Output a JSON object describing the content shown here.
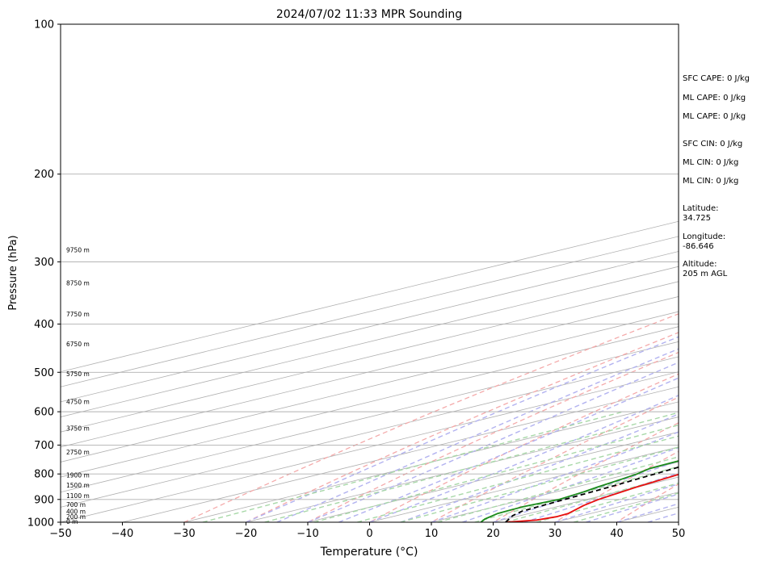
{
  "chart_data": {
    "type": "line",
    "title": "2024/07/02 11:33 MPR Sounding",
    "xlabel": "Temperature (°C)",
    "ylabel": "Pressure (hPa)",
    "xlim": [
      -50,
      50
    ],
    "ylim": [
      1000,
      100
    ],
    "y_scale": "log",
    "x_ticks": [
      -50,
      -40,
      -30,
      -20,
      -10,
      0,
      10,
      20,
      30,
      40,
      50
    ],
    "y_ticks": [
      1000,
      900,
      800,
      700,
      600,
      500,
      400,
      300,
      200,
      100
    ],
    "grid": true,
    "series": [
      {
        "key": "temperature",
        "color": "#e8100f",
        "dash": "solid",
        "points": [
          [
            1000,
            22.0
          ],
          [
            990,
            25.6
          ],
          [
            975,
            26.6
          ],
          [
            960,
            26.3
          ],
          [
            925,
            23.5
          ],
          [
            900,
            21.9
          ],
          [
            850,
            19.8
          ],
          [
            800,
            18.2
          ],
          [
            750,
            16.6
          ],
          [
            700,
            14.7
          ],
          [
            650,
            13.2
          ],
          [
            600,
            11.7
          ],
          [
            550,
            9.8
          ],
          [
            500,
            7.5
          ],
          [
            450,
            4.5
          ],
          [
            400,
            1.1
          ],
          [
            350,
            -3.3
          ],
          [
            300,
            -8.3
          ],
          [
            282,
            -10.4
          ]
        ]
      },
      {
        "key": "dewpoint",
        "color": "#1a8a1a",
        "dash": "solid",
        "points": [
          [
            1000,
            18.0
          ],
          [
            985,
            16.5
          ],
          [
            960,
            14.9
          ],
          [
            930,
            14.5
          ],
          [
            900,
            15.5
          ],
          [
            870,
            14.5
          ],
          [
            850,
            13.5
          ],
          [
            820,
            12.2
          ],
          [
            800,
            11.2
          ],
          [
            780,
            9.6
          ],
          [
            750,
            9.2
          ],
          [
            700,
            7.2
          ],
          [
            650,
            5.5
          ],
          [
            610,
            4.0
          ],
          [
            600,
            3.5
          ],
          [
            580,
            3.7
          ],
          [
            560,
            2.3
          ],
          [
            530,
            -0.6
          ],
          [
            500,
            -3.2
          ],
          [
            450,
            -8.0
          ],
          [
            400,
            -14.0
          ],
          [
            350,
            -20.5
          ],
          [
            325,
            -24.2
          ],
          [
            300,
            -27.6
          ],
          [
            290,
            -29.0
          ],
          [
            282,
            -27.5
          ]
        ]
      },
      {
        "key": "parcel",
        "color": "#000000",
        "dash": "6,4",
        "points": [
          [
            1000,
            22.0
          ],
          [
            970,
            18.8
          ],
          [
            950,
            17.3
          ],
          [
            900,
            16.4
          ],
          [
            850,
            15.4
          ],
          [
            800,
            14.1
          ],
          [
            750,
            12.7
          ],
          [
            700,
            11.0
          ],
          [
            650,
            9.1
          ],
          [
            600,
            6.8
          ],
          [
            550,
            4.0
          ],
          [
            500,
            0.8
          ],
          [
            450,
            -3.0
          ],
          [
            400,
            -7.5
          ],
          [
            350,
            -12.6
          ],
          [
            300,
            -17.8
          ],
          [
            282,
            -19.9
          ]
        ]
      }
    ],
    "height_labels": [
      {
        "p": 1000,
        "label": "0 m"
      },
      {
        "p": 977,
        "label": "200 m"
      },
      {
        "p": 955,
        "label": "400 m"
      },
      {
        "p": 925,
        "label": "700 m"
      },
      {
        "p": 887,
        "label": "1100 m"
      },
      {
        "p": 845,
        "label": "1500 m"
      },
      {
        "p": 807,
        "label": "1900 m"
      },
      {
        "p": 725,
        "label": "2750 m"
      },
      {
        "p": 650,
        "label": "3750 m"
      },
      {
        "p": 575,
        "label": "4750 m"
      },
      {
        "p": 505,
        "label": "5750 m"
      },
      {
        "p": 440,
        "label": "6750 m"
      },
      {
        "p": 383,
        "label": "7750 m"
      },
      {
        "p": 332,
        "label": "8750 m"
      },
      {
        "p": 285,
        "label": "9750 m"
      }
    ],
    "background_lines": {
      "isotherm_color": "#b0b0b0",
      "dry_adiabat_color": "#f4aaaa",
      "moist_adiabat_color": "#b3b3f0",
      "mixing_ratio_color": "#a8d8a8"
    }
  },
  "side_panel": [
    {
      "key": "sfc_cape",
      "text": "SFC CAPE: 0 J/kg"
    },
    {
      "key": "ml_cape_1",
      "text": "ML CAPE: 0 J/kg"
    },
    {
      "key": "ml_cape_2",
      "text": "ML CAPE: 0 J/kg"
    },
    {
      "key": "sfc_cin",
      "text": "SFC CIN: 0 J/kg"
    },
    {
      "key": "ml_cin_1",
      "text": "ML CIN: 0 J/kg"
    },
    {
      "key": "ml_cin_2",
      "text": "ML CIN: 0 J/kg"
    },
    {
      "key": "latitude",
      "text": "Latitude:\n34.725"
    },
    {
      "key": "longitude",
      "text": "Longitude:\n-86.646"
    },
    {
      "key": "altitude",
      "text": "Altitude:\n205 m AGL"
    }
  ]
}
